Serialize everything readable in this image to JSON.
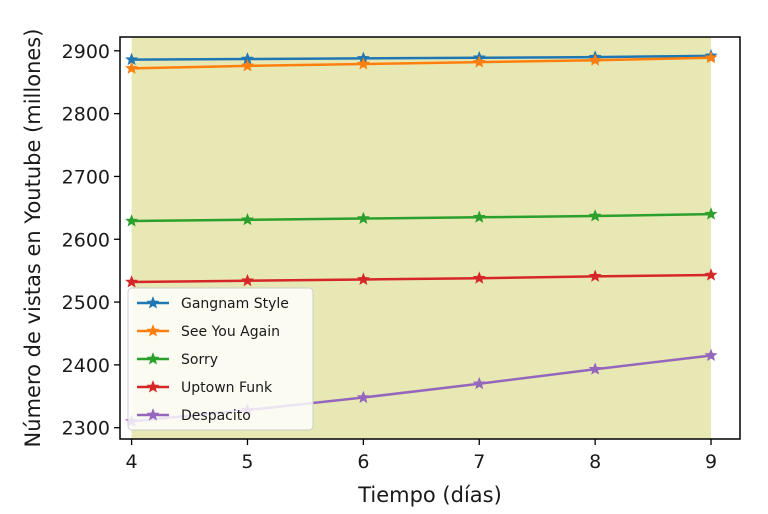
{
  "chart_data": {
    "type": "line",
    "title": "",
    "xlabel": "Tiempo (días)",
    "ylabel": "Número de vistas en Youtube (millones)",
    "x": [
      4,
      5,
      6,
      7,
      8,
      9
    ],
    "xticks": [
      "4",
      "5",
      "6",
      "7",
      "8",
      "9"
    ],
    "yticks": [
      "2300",
      "2400",
      "2500",
      "2600",
      "2700",
      "2800",
      "2900"
    ],
    "xlim": [
      3.9,
      9.25
    ],
    "ylim": [
      2282,
      2922
    ],
    "grid": false,
    "legend_position": "lower-left",
    "marker": "star",
    "highlight_band": {
      "x_from": 4,
      "x_to": 9,
      "color": "#e8e8b5"
    },
    "series": [
      {
        "name": "Gangnam Style",
        "color": "#1f77b4",
        "values": [
          2886,
          2887,
          2888,
          2889,
          2890,
          2892
        ]
      },
      {
        "name": "See You Again",
        "color": "#ff7f0e",
        "values": [
          2872,
          2876,
          2879,
          2882,
          2885,
          2889
        ]
      },
      {
        "name": "Sorry",
        "color": "#2ca02c",
        "values": [
          2629,
          2631,
          2633,
          2635,
          2637,
          2640
        ]
      },
      {
        "name": "Uptown Funk",
        "color": "#d62728",
        "values": [
          2532,
          2534,
          2536,
          2538,
          2541,
          2543
        ]
      },
      {
        "name": "Despacito",
        "color": "#9467bd",
        "values": [
          2310,
          2328,
          2348,
          2370,
          2393,
          2415
        ]
      }
    ]
  }
}
